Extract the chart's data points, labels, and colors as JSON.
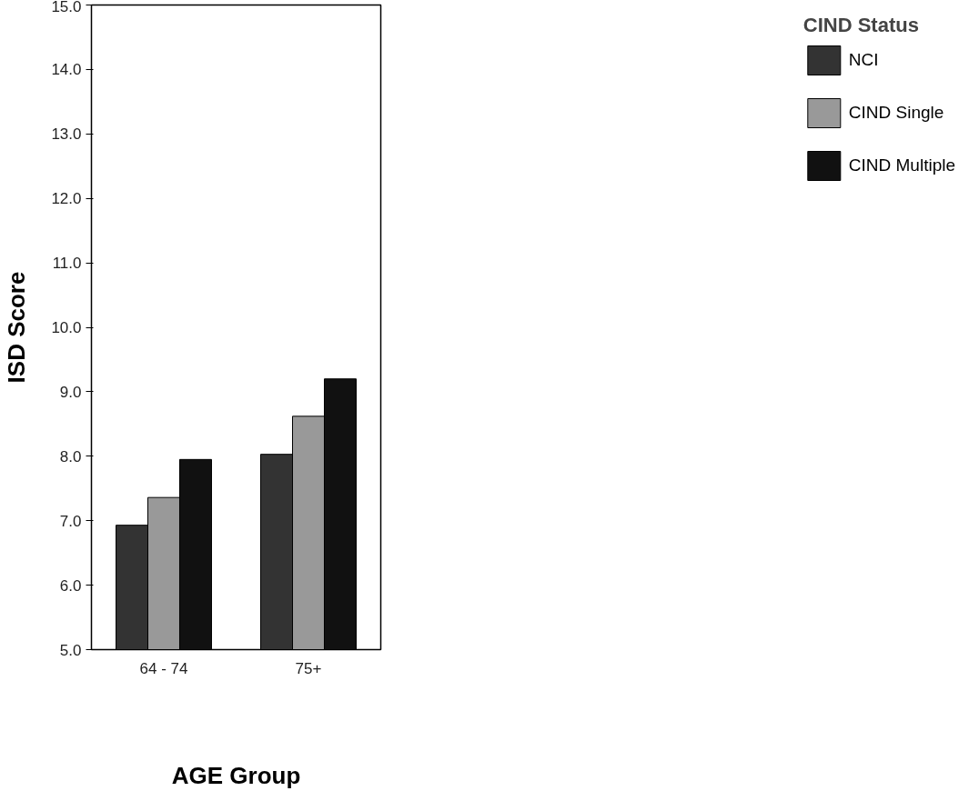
{
  "chart_data": {
    "type": "bar",
    "xlabel": "AGE Group",
    "ylabel": "ISD Score",
    "legend_title": "CIND Status",
    "categories": [
      "64 - 74",
      "75+"
    ],
    "series": [
      {
        "name": "NCI",
        "color": "#333333",
        "values": [
          6.93,
          8.03
        ]
      },
      {
        "name": "CIND Single",
        "color": "#999999",
        "values": [
          7.36,
          8.62
        ]
      },
      {
        "name": "CIND Multiple",
        "color": "#111111",
        "values": [
          7.95,
          9.2
        ]
      }
    ],
    "ylim": [
      5,
      15
    ],
    "yticks": [
      {
        "value": 5,
        "label": "5.0"
      },
      {
        "value": 6,
        "label": "6.0"
      },
      {
        "value": 7,
        "label": "7.0"
      },
      {
        "value": 8,
        "label": "8.0"
      },
      {
        "value": 9,
        "label": "9.0"
      },
      {
        "value": 10,
        "label": "10.0"
      },
      {
        "value": 11,
        "label": "11.0"
      },
      {
        "value": 12,
        "label": "12.0"
      },
      {
        "value": 13,
        "label": "13.0"
      },
      {
        "value": 14,
        "label": "14.0"
      },
      {
        "value": 15,
        "label": "15.0"
      }
    ],
    "grid": false,
    "legend": "right"
  }
}
